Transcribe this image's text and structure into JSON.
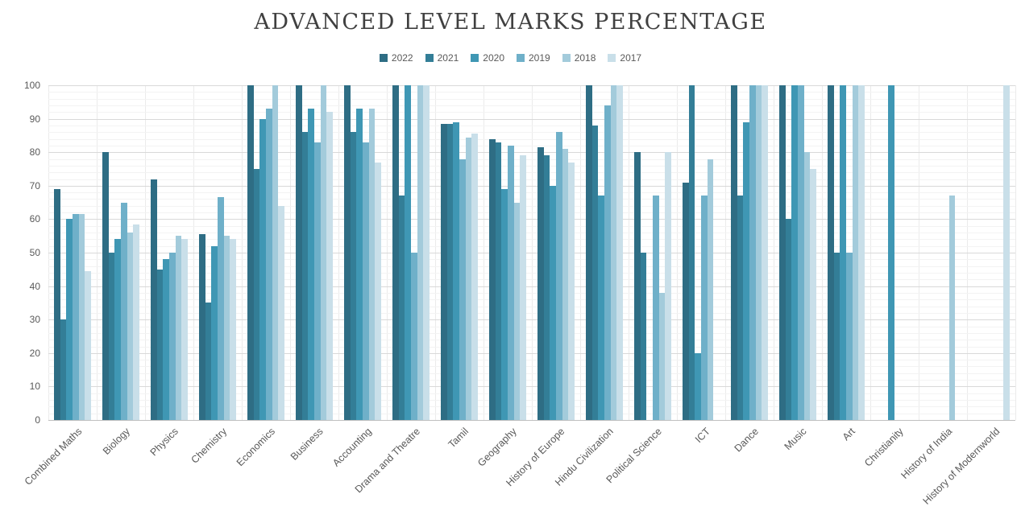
{
  "chart_data": {
    "type": "bar",
    "title": "ADVANCED LEVEL MARKS PERCENTAGE",
    "title_color": "#404040",
    "xlabel": "",
    "ylabel": "",
    "ylim": [
      0,
      100
    ],
    "yticks": [
      0,
      10,
      20,
      30,
      40,
      50,
      60,
      70,
      80,
      90,
      100
    ],
    "ytick_step": 10,
    "minor_gridline_step": 2,
    "grid": true,
    "legend_position": "top",
    "axis_text_color": "#595959",
    "categories": [
      "Combined Maths",
      "Biology",
      "Physics",
      "Chemistry",
      "Economics",
      "Business",
      "Accounting",
      "Drama and Theatre",
      "Tamil",
      "Geography",
      "History of Europe",
      "Hindu Civilization",
      "Political Science",
      "ICT",
      "Dance",
      "Music",
      "Art",
      "Christianity",
      "History of India",
      "History of Modernworld"
    ],
    "series": [
      {
        "name": "2022",
        "color": "#2E6D84",
        "values": [
          69,
          80,
          72,
          55.5,
          100,
          100,
          100,
          100,
          88.5,
          84,
          81.5,
          100,
          80,
          71,
          100,
          100,
          100,
          null,
          null,
          null
        ]
      },
      {
        "name": "2021",
        "color": "#337E97",
        "values": [
          30,
          50,
          45,
          35,
          75,
          86,
          86,
          67,
          88.5,
          83,
          79,
          88,
          50,
          100,
          67,
          60,
          50,
          null,
          null,
          null
        ]
      },
      {
        "name": "2020",
        "color": "#3F97B4",
        "values": [
          60,
          54,
          48,
          52,
          90,
          93,
          93,
          100,
          89,
          69,
          70,
          67,
          null,
          20,
          89,
          100,
          100,
          100,
          null,
          null
        ]
      },
      {
        "name": "2019",
        "color": "#6FB0C9",
        "values": [
          61.5,
          65,
          50,
          66.5,
          93,
          83,
          83,
          50,
          78,
          82,
          86,
          94,
          67,
          67,
          100,
          100,
          50,
          null,
          null,
          null
        ]
      },
      {
        "name": "2018",
        "color": "#A3CBDB",
        "values": [
          61.5,
          56,
          55,
          55,
          100,
          100,
          93,
          100,
          84.5,
          65,
          81,
          100,
          38,
          78,
          100,
          80,
          100,
          null,
          67,
          null
        ]
      },
      {
        "name": "2017",
        "color": "#C9DFE9",
        "values": [
          44.5,
          58.5,
          54,
          54,
          64,
          92,
          77,
          100,
          85.5,
          79,
          77,
          100,
          80,
          null,
          100,
          75,
          100,
          null,
          null,
          100
        ]
      }
    ]
  }
}
